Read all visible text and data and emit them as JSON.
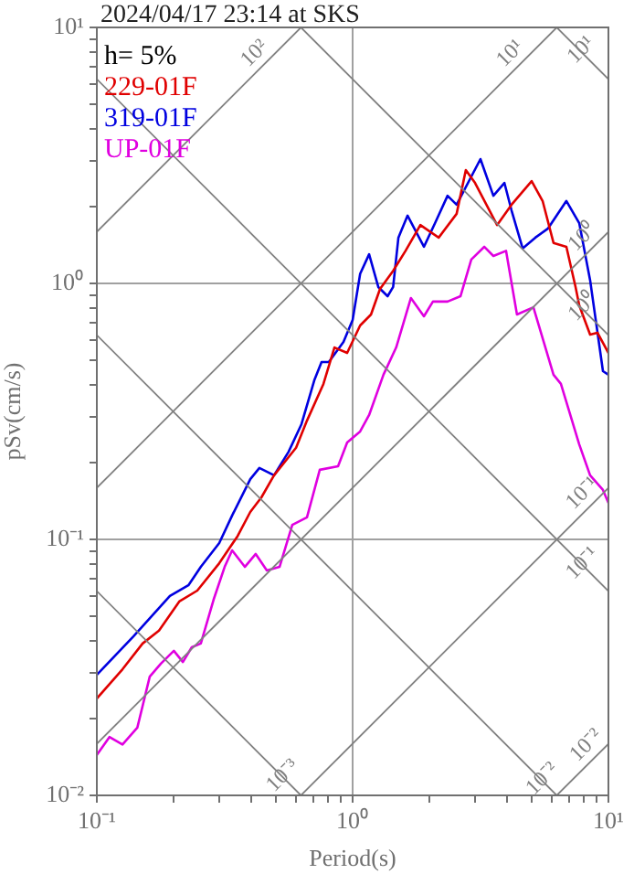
{
  "chart_data": {
    "type": "line",
    "title": "2024/04/17 23:14 at SKS",
    "xlabel": "Period(s)",
    "ylabel": "pSv(cm/s)",
    "log": "xy",
    "grid": true,
    "legend": "top left",
    "marker": "none",
    "line_style": "solid",
    "xlim": [
      0.1,
      10
    ],
    "ylim": [
      0.01,
      10
    ],
    "xticks": [
      {
        "value": 0.1,
        "label": "10⁻¹"
      },
      {
        "value": 0.2,
        "label": null
      },
      {
        "value": 0.3,
        "label": null
      },
      {
        "value": 0.4,
        "label": null
      },
      {
        "value": 0.5,
        "label": null
      },
      {
        "value": 0.6,
        "label": null
      },
      {
        "value": 0.7,
        "label": null
      },
      {
        "value": 0.8,
        "label": null
      },
      {
        "value": 0.9,
        "label": null
      },
      {
        "value": 1,
        "label": "10⁰"
      },
      {
        "value": 2,
        "label": null
      },
      {
        "value": 3,
        "label": null
      },
      {
        "value": 4,
        "label": null
      },
      {
        "value": 5,
        "label": null
      },
      {
        "value": 6,
        "label": null
      },
      {
        "value": 7,
        "label": null
      },
      {
        "value": 8,
        "label": null
      },
      {
        "value": 9,
        "label": null
      },
      {
        "value": 10,
        "label": "10¹"
      }
    ],
    "yticks": [
      {
        "value": 0.01,
        "label": "10⁻²"
      },
      {
        "value": 0.02,
        "label": null
      },
      {
        "value": 0.03,
        "label": null
      },
      {
        "value": 0.04,
        "label": null
      },
      {
        "value": 0.05,
        "label": null
      },
      {
        "value": 0.06,
        "label": null
      },
      {
        "value": 0.07,
        "label": null
      },
      {
        "value": 0.08,
        "label": null
      },
      {
        "value": 0.09,
        "label": null
      },
      {
        "value": 0.1,
        "label": "10⁻¹"
      },
      {
        "value": 0.2,
        "label": null
      },
      {
        "value": 0.3,
        "label": null
      },
      {
        "value": 0.4,
        "label": null
      },
      {
        "value": 0.5,
        "label": null
      },
      {
        "value": 0.6,
        "label": null
      },
      {
        "value": 0.7,
        "label": null
      },
      {
        "value": 0.8,
        "label": null
      },
      {
        "value": 0.9,
        "label": null
      },
      {
        "value": 1,
        "label": "10⁰"
      },
      {
        "value": 2,
        "label": null
      },
      {
        "value": 3,
        "label": null
      },
      {
        "value": 4,
        "label": null
      },
      {
        "value": 5,
        "label": null
      },
      {
        "value": 6,
        "label": null
      },
      {
        "value": 7,
        "label": null
      },
      {
        "value": 8,
        "label": null
      },
      {
        "value": 9,
        "label": null
      },
      {
        "value": 10,
        "label": "10¹"
      }
    ],
    "series": [
      {
        "color": "#808080",
        "x": [
          0.1,
          0.628
        ],
        "values": [
          1.59,
          10
        ]
      },
      {
        "color": "#808080",
        "x": [
          0.1,
          6.28
        ],
        "values": [
          0.159,
          10
        ]
      },
      {
        "color": "#808080",
        "x": [
          0.1,
          10
        ],
        "values": [
          0.0159,
          1.59
        ]
      },
      {
        "color": "#808080",
        "x": [
          0.628,
          10
        ],
        "values": [
          0.01,
          0.159
        ]
      },
      {
        "color": "#808080",
        "x": [
          6.28,
          10
        ],
        "values": [
          0.01,
          0.0159
        ]
      },
      {
        "color": "#808080",
        "x": [
          6.28,
          10
        ],
        "values": [
          10,
          6.28
        ]
      },
      {
        "color": "#808080",
        "x": [
          0.628,
          10
        ],
        "values": [
          10,
          0.628
        ]
      },
      {
        "color": "#808080",
        "x": [
          0.1,
          10
        ],
        "values": [
          6.28,
          0.0628
        ]
      },
      {
        "color": "#808080",
        "x": [
          0.1,
          6.28
        ],
        "values": [
          0.628,
          0.01
        ]
      },
      {
        "color": "#808080",
        "x": [
          0.1,
          0.628
        ],
        "values": [
          0.0628,
          0.01
        ]
      },
      {
        "name": "229-01F",
        "color": "#e00000",
        "x": [
          0.1,
          0.126,
          0.151,
          0.175,
          0.21,
          0.247,
          0.301,
          0.355,
          0.398,
          0.44,
          0.493,
          0.601,
          0.663,
          0.769,
          0.849,
          0.952,
          1.07,
          1.18,
          1.28,
          1.44,
          1.61,
          1.84,
          2.17,
          2.55,
          2.77,
          3.01,
          3.67,
          4.18,
          5.01,
          5.53,
          6.1,
          6.85,
          7.44,
          7.69,
          8.48,
          9.06,
          10
        ],
        "values": [
          0.0239,
          0.0311,
          0.0392,
          0.044,
          0.0572,
          0.0631,
          0.0807,
          0.103,
          0.128,
          0.146,
          0.178,
          0.228,
          0.291,
          0.405,
          0.562,
          0.535,
          0.685,
          0.756,
          0.952,
          1.12,
          1.34,
          1.69,
          1.51,
          1.87,
          2.77,
          2.47,
          1.69,
          2.03,
          2.51,
          2.1,
          1.44,
          1.39,
          0.968,
          0.821,
          0.631,
          0.642,
          0.535
        ]
      },
      {
        "name": "319-01F",
        "color": "#0000e0",
        "x": [
          0.1,
          0.139,
          0.193,
          0.228,
          0.255,
          0.301,
          0.338,
          0.398,
          0.432,
          0.493,
          0.562,
          0.631,
          0.708,
          0.756,
          0.807,
          0.921,
          1,
          1.07,
          1.16,
          1.26,
          1.37,
          1.44,
          1.51,
          1.64,
          1.9,
          2.1,
          2.35,
          2.55,
          3.16,
          3.55,
          3.92,
          4.18,
          4.62,
          5.18,
          5.81,
          6.85,
          7.69,
          8.48,
          9.52,
          10
        ],
        "values": [
          0.0296,
          0.0418,
          0.0601,
          0.0662,
          0.0781,
          0.0968,
          0.124,
          0.172,
          0.19,
          0.178,
          0.22,
          0.282,
          0.418,
          0.493,
          0.493,
          0.591,
          0.719,
          1.09,
          1.3,
          0.968,
          0.891,
          0.968,
          1.51,
          1.84,
          1.39,
          1.72,
          2.2,
          2.03,
          3.06,
          2.2,
          2.47,
          1.93,
          1.37,
          1.51,
          1.64,
          2.1,
          1.72,
          1.03,
          0.454,
          0.44
        ]
      },
      {
        "name": "UP-01F",
        "color": "#e000e0",
        "x": [
          0.1,
          0.112,
          0.126,
          0.144,
          0.161,
          0.178,
          0.2,
          0.217,
          0.235,
          0.255,
          0.286,
          0.316,
          0.338,
          0.379,
          0.418,
          0.462,
          0.518,
          0.581,
          0.663,
          0.744,
          0.877,
          0.952,
          1.07,
          1.16,
          1.32,
          1.48,
          1.69,
          1.9,
          2.06,
          2.35,
          2.64,
          2.91,
          3.27,
          3.55,
          3.98,
          4.39,
          5.09,
          6.1,
          6.52,
          7.69,
          8.48,
          9.52,
          10
        ],
        "values": [
          0.0144,
          0.0169,
          0.0158,
          0.0184,
          0.0291,
          0.0327,
          0.0367,
          0.0332,
          0.0379,
          0.0392,
          0.0581,
          0.0781,
          0.0906,
          0.0781,
          0.0877,
          0.0756,
          0.0781,
          0.114,
          0.122,
          0.187,
          0.193,
          0.239,
          0.264,
          0.306,
          0.44,
          0.562,
          0.877,
          0.744,
          0.849,
          0.849,
          0.891,
          1.24,
          1.39,
          1.28,
          1.34,
          0.756,
          0.807,
          0.44,
          0.405,
          0.235,
          0.178,
          0.156,
          0.139
        ]
      }
    ],
    "annotations": [
      "h= 5%",
      {
        "text": "10²",
        "x": 0.45,
        "y": 7.16
      },
      {
        "text": "10¹",
        "x": 4.5,
        "y": 7.16
      },
      {
        "text": "10¹",
        "x": 8.5,
        "y": 7.39
      },
      {
        "text": "10⁰",
        "x": 8.6,
        "y": 1.37
      },
      {
        "text": "10⁰",
        "x": 8.6,
        "y": 0.73
      },
      {
        "text": "10⁻¹",
        "x": 8.6,
        "y": 0.137
      },
      {
        "text": "10⁻¹",
        "x": 8.6,
        "y": 0.073
      },
      {
        "text": "10⁻²",
        "x": 8.9,
        "y": 0.0142
      },
      {
        "text": "10⁻²",
        "x": 6.0,
        "y": 0.0105
      },
      {
        "text": "10⁻³",
        "x": 0.58,
        "y": 0.0108
      }
    ]
  }
}
